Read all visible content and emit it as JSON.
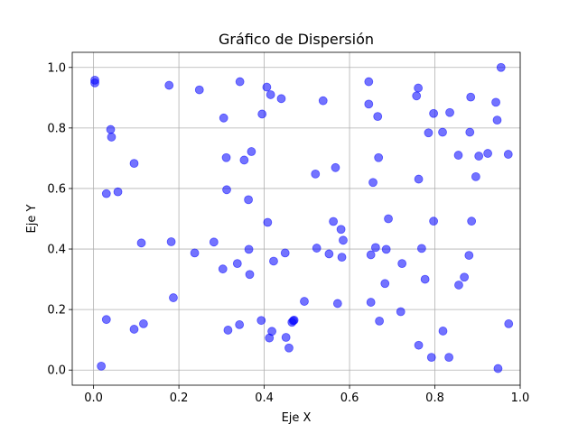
{
  "chart_data": {
    "type": "scatter",
    "title": "Gráfico de Dispersión",
    "xlabel": "Eje X",
    "ylabel": "Eje Y",
    "xlim": [
      -0.05,
      1.0
    ],
    "ylim": [
      -0.05,
      1.05
    ],
    "xticks": [
      0.0,
      0.2,
      0.4,
      0.6,
      0.8,
      1.0
    ],
    "yticks": [
      0.0,
      0.2,
      0.4,
      0.6,
      0.8,
      1.0
    ],
    "xtick_labels": [
      "0.0",
      "0.2",
      "0.4",
      "0.6",
      "0.8",
      "1.0"
    ],
    "ytick_labels": [
      "0.0",
      "0.2",
      "0.4",
      "0.6",
      "0.8",
      "1.0"
    ],
    "grid": true,
    "marker_color": "#0000ff",
    "marker_opacity": 0.55,
    "points": [
      [
        0.003,
        0.958
      ],
      [
        0.003,
        0.949
      ],
      [
        0.018,
        0.013
      ],
      [
        0.03,
        0.167
      ],
      [
        0.03,
        0.583
      ],
      [
        0.04,
        0.795
      ],
      [
        0.042,
        0.77
      ],
      [
        0.057,
        0.589
      ],
      [
        0.095,
        0.683
      ],
      [
        0.095,
        0.135
      ],
      [
        0.112,
        0.42
      ],
      [
        0.117,
        0.153
      ],
      [
        0.177,
        0.941
      ],
      [
        0.182,
        0.424
      ],
      [
        0.187,
        0.239
      ],
      [
        0.237,
        0.387
      ],
      [
        0.248,
        0.926
      ],
      [
        0.282,
        0.423
      ],
      [
        0.303,
        0.334
      ],
      [
        0.305,
        0.833
      ],
      [
        0.311,
        0.702
      ],
      [
        0.312,
        0.596
      ],
      [
        0.315,
        0.132
      ],
      [
        0.337,
        0.352
      ],
      [
        0.342,
        0.15
      ],
      [
        0.343,
        0.953
      ],
      [
        0.353,
        0.694
      ],
      [
        0.363,
        0.563
      ],
      [
        0.364,
        0.399
      ],
      [
        0.366,
        0.316
      ],
      [
        0.37,
        0.722
      ],
      [
        0.393,
        0.164
      ],
      [
        0.395,
        0.846
      ],
      [
        0.406,
        0.935
      ],
      [
        0.408,
        0.488
      ],
      [
        0.412,
        0.106
      ],
      [
        0.415,
        0.91
      ],
      [
        0.418,
        0.128
      ],
      [
        0.422,
        0.36
      ],
      [
        0.44,
        0.897
      ],
      [
        0.449,
        0.387
      ],
      [
        0.451,
        0.108
      ],
      [
        0.458,
        0.073
      ],
      [
        0.465,
        0.158
      ],
      [
        0.468,
        0.163
      ],
      [
        0.47,
        0.165
      ],
      [
        0.494,
        0.227
      ],
      [
        0.52,
        0.648
      ],
      [
        0.523,
        0.403
      ],
      [
        0.538,
        0.89
      ],
      [
        0.552,
        0.384
      ],
      [
        0.562,
        0.491
      ],
      [
        0.567,
        0.669
      ],
      [
        0.572,
        0.22
      ],
      [
        0.58,
        0.465
      ],
      [
        0.582,
        0.373
      ],
      [
        0.585,
        0.429
      ],
      [
        0.645,
        0.953
      ],
      [
        0.645,
        0.879
      ],
      [
        0.65,
        0.381
      ],
      [
        0.65,
        0.224
      ],
      [
        0.655,
        0.62
      ],
      [
        0.661,
        0.405
      ],
      [
        0.666,
        0.838
      ],
      [
        0.668,
        0.702
      ],
      [
        0.67,
        0.162
      ],
      [
        0.683,
        0.286
      ],
      [
        0.686,
        0.399
      ],
      [
        0.691,
        0.5
      ],
      [
        0.72,
        0.193
      ],
      [
        0.723,
        0.352
      ],
      [
        0.757,
        0.906
      ],
      [
        0.761,
        0.932
      ],
      [
        0.762,
        0.082
      ],
      [
        0.762,
        0.631
      ],
      [
        0.769,
        0.402
      ],
      [
        0.777,
        0.3
      ],
      [
        0.785,
        0.784
      ],
      [
        0.792,
        0.042
      ],
      [
        0.797,
        0.848
      ],
      [
        0.797,
        0.492
      ],
      [
        0.818,
        0.786
      ],
      [
        0.819,
        0.129
      ],
      [
        0.833,
        0.042
      ],
      [
        0.835,
        0.851
      ],
      [
        0.855,
        0.71
      ],
      [
        0.856,
        0.281
      ],
      [
        0.869,
        0.307
      ],
      [
        0.88,
        0.379
      ],
      [
        0.882,
        0.786
      ],
      [
        0.884,
        0.902
      ],
      [
        0.886,
        0.492
      ],
      [
        0.896,
        0.639
      ],
      [
        0.903,
        0.707
      ],
      [
        0.924,
        0.716
      ],
      [
        0.943,
        0.885
      ],
      [
        0.946,
        0.826
      ],
      [
        0.948,
        0.005
      ],
      [
        0.955,
        1.0
      ],
      [
        0.972,
        0.713
      ],
      [
        0.973,
        0.153
      ]
    ]
  }
}
